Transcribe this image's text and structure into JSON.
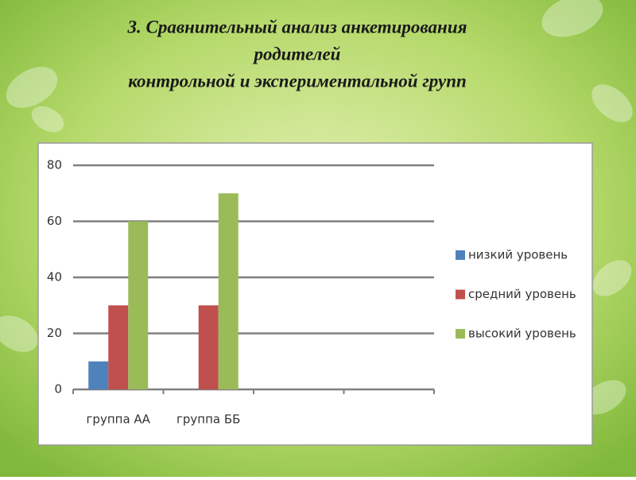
{
  "chart_data": {
    "type": "bar",
    "title": [
      "3. Сравнительный анализ анкетирования",
      "родителей",
      "контрольной и экспериментальной групп"
    ],
    "categories": [
      "группа АА",
      "группа ББ",
      null,
      null
    ],
    "series": [
      {
        "name": "низкий уровень",
        "color": "#4f81bd",
        "values": [
          10,
          null,
          null,
          null
        ]
      },
      {
        "name": "средний уровень",
        "color": "#c0504d",
        "values": [
          30,
          30,
          null,
          null
        ]
      },
      {
        "name": "высокий уровень",
        "color": "#9bbb59",
        "values": [
          60,
          70,
          null,
          null
        ]
      }
    ],
    "ylim": [
      0,
      80
    ],
    "yticks": [
      0,
      20,
      40,
      60,
      80
    ],
    "grid": true,
    "legend": "right"
  }
}
